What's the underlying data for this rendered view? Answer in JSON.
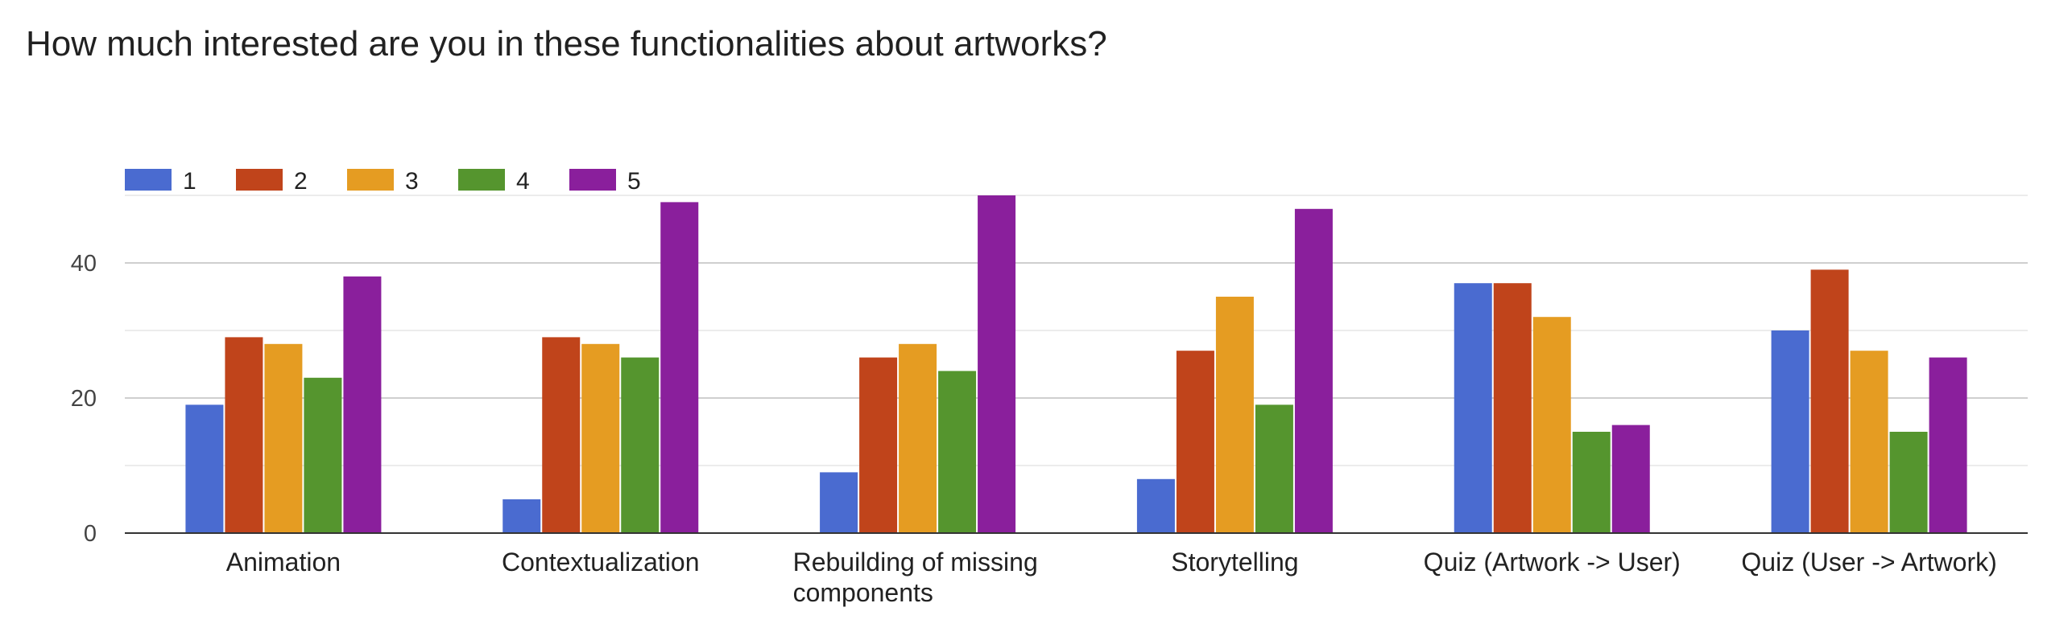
{
  "page_title": "How much interested are you in these functionalities about artworks?",
  "chart_data": {
    "type": "bar",
    "title": "How much interested are you in these functionalities about artworks?",
    "xlabel": "",
    "ylabel": "",
    "categories": [
      [
        "Animation"
      ],
      [
        "Contextualization"
      ],
      [
        "Rebuilding of missing",
        "components"
      ],
      [
        "Storytelling"
      ],
      [
        "Quiz (Artwork -> User)"
      ],
      [
        "Quiz (User -> Artwork)"
      ]
    ],
    "series": [
      {
        "name": "1",
        "color": "#4a6bd0",
        "values": [
          19,
          5,
          9,
          8,
          37,
          30
        ]
      },
      {
        "name": "2",
        "color": "#c0441b",
        "values": [
          29,
          29,
          26,
          27,
          37,
          39
        ]
      },
      {
        "name": "3",
        "color": "#e59c22",
        "values": [
          28,
          28,
          28,
          35,
          32,
          27
        ]
      },
      {
        "name": "4",
        "color": "#55952e",
        "values": [
          23,
          26,
          24,
          19,
          15,
          15
        ]
      },
      {
        "name": "5",
        "color": "#8a1f9c",
        "values": [
          38,
          49,
          50,
          48,
          16,
          26
        ]
      }
    ],
    "ylim": [
      0,
      50
    ],
    "yticks": [
      0,
      20,
      40
    ],
    "grid": true,
    "legend": "top-left"
  }
}
